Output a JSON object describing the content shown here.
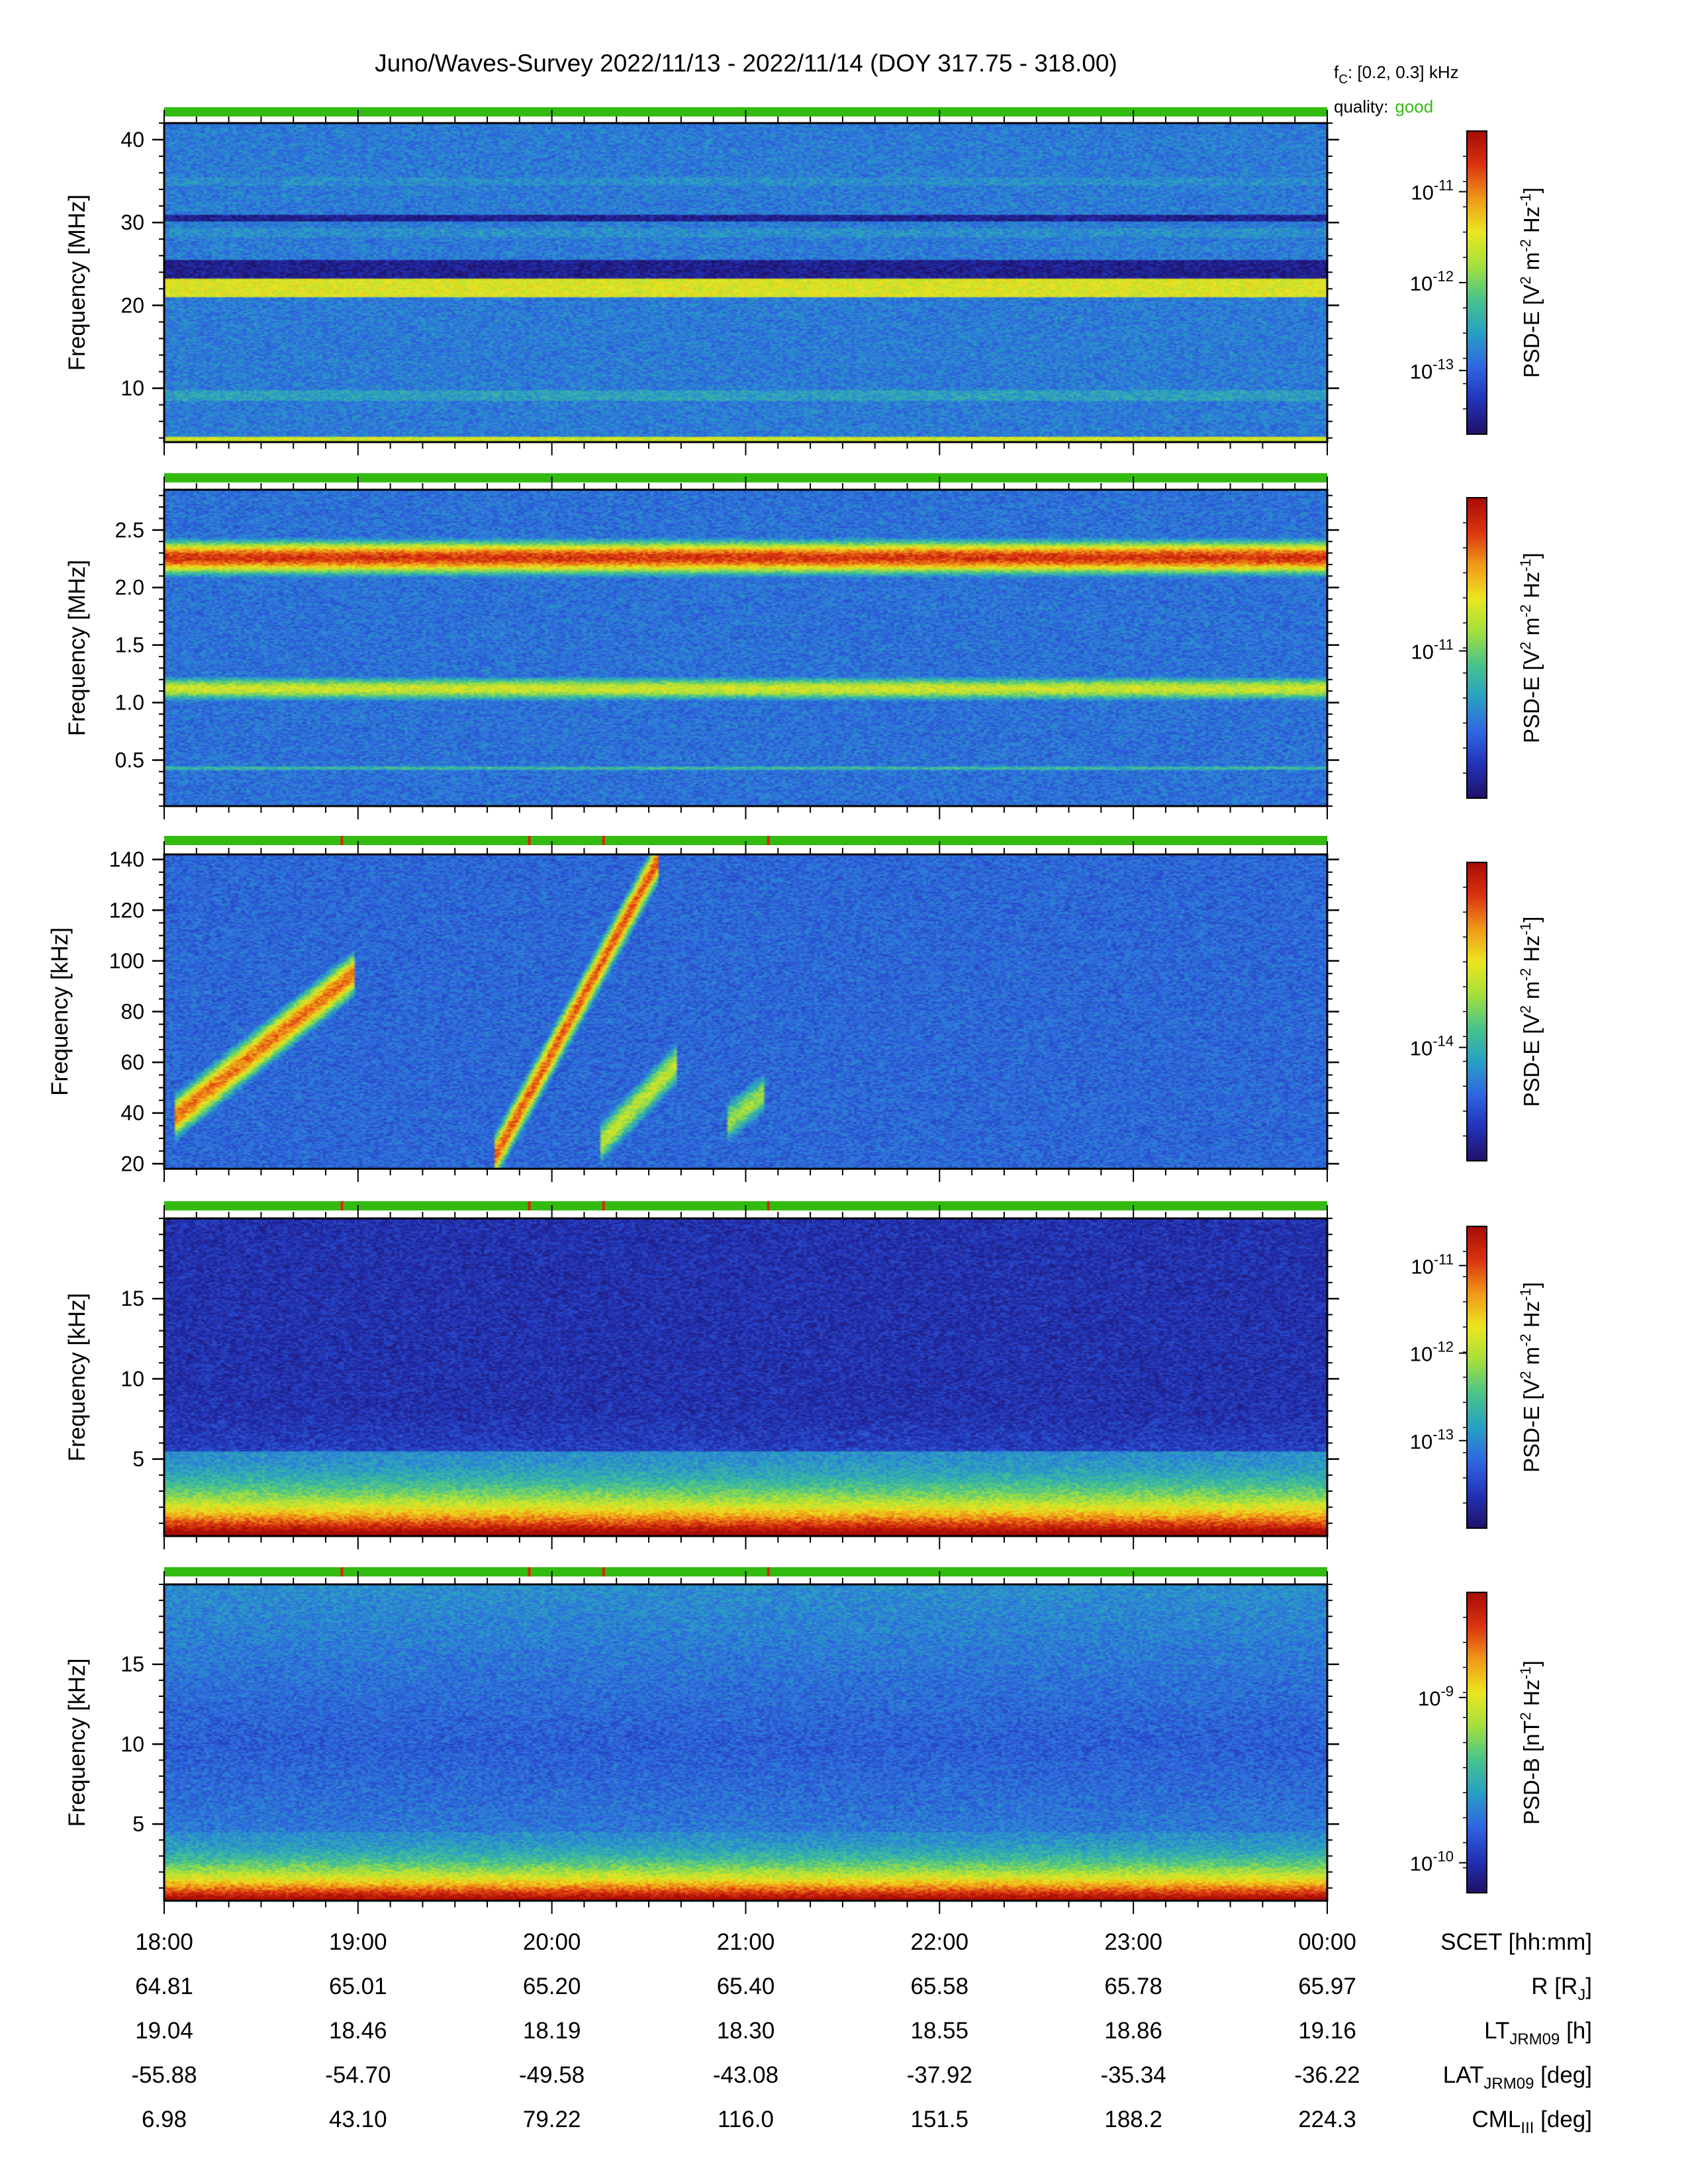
{
  "title": "Juno/Waves-Survey  2022/11/13 - 2022/11/14 (DOY 317.75 - 318.00)",
  "fc": {
    "sym": "f",
    "sub": "C",
    "text": ": [0.2, 0.3] kHz"
  },
  "quality": {
    "label": "quality:",
    "value": "good",
    "color": "#33bb11"
  },
  "chart_data": {
    "type": "heatmap",
    "x_axis": {
      "label": "SCET [hh:mm]",
      "ticks": [
        "18:00",
        "19:00",
        "20:00",
        "21:00",
        "22:00",
        "23:00",
        "00:00"
      ],
      "range": [
        "2022-11-13T18:00",
        "2022-11-14T00:00"
      ]
    },
    "ephemeris": [
      {
        "name": "R",
        "unit": " [R",
        "sub": "J",
        "tail": "]",
        "values": [
          "64.81",
          "65.01",
          "65.20",
          "65.40",
          "65.58",
          "65.78",
          "65.97"
        ]
      },
      {
        "name": "LT",
        "unit": "",
        "sub": "JRM09",
        "tail": " [h]",
        "values": [
          "19.04",
          "18.46",
          "18.19",
          "18.30",
          "18.55",
          "18.86",
          "19.16"
        ]
      },
      {
        "name": "LAT",
        "unit": "",
        "sub": "JRM09",
        "tail": " [deg]",
        "values": [
          "-55.88",
          "-54.70",
          "-49.58",
          "-43.08",
          "-37.92",
          "-35.34",
          "-36.22"
        ]
      },
      {
        "name": "CML",
        "unit": "",
        "sub": "III",
        "tail": " [deg]",
        "values": [
          "6.98",
          "43.10",
          "79.22",
          "116.0",
          "151.5",
          "188.2",
          "224.3"
        ]
      }
    ],
    "quality_flag_colors": {
      "good": "#33bb11",
      "flag": "#dd2200"
    },
    "flag_times": [
      "18:55",
      "19:53",
      "20:16",
      "21:07"
    ],
    "colormap": [
      "#20126a",
      "#2233b8",
      "#2f68e0",
      "#29a0c4",
      "#48c48c",
      "#a4e03c",
      "#ece620",
      "#f09a18",
      "#dc3410",
      "#a80c04"
    ],
    "panels": [
      {
        "ylabel": "Frequency [MHz]",
        "yrange": [
          3.5,
          42
        ],
        "yticks": [
          10,
          20,
          30,
          40
        ],
        "ytick_labels": [
          "10",
          "20",
          "30",
          "40"
        ],
        "minor_step": 2,
        "quantity": "PSD-E",
        "unit_text": [
          "[V",
          "2",
          " m",
          "-2",
          " Hz",
          "-1",
          "]"
        ],
        "cbar_ticks": [
          {
            "exp": "-11",
            "frac": 0.2
          },
          {
            "exp": "-12",
            "frac": 0.5
          },
          {
            "exp": "-13",
            "frac": 0.79
          }
        ],
        "flags": false,
        "features": [
          {
            "kind": "band",
            "from": 3.5,
            "to": 4.2,
            "level": 0.62
          },
          {
            "kind": "band",
            "from": 8.5,
            "to": 9.8,
            "level": 0.34
          },
          {
            "kind": "band",
            "from": 21,
            "to": 23.2,
            "level": 0.64
          },
          {
            "kind": "band",
            "from": 23.2,
            "to": 25.5,
            "level": 0.05
          },
          {
            "kind": "band",
            "from": 30.2,
            "to": 31,
            "level": 0.05
          },
          {
            "kind": "band",
            "from": 28.2,
            "to": 29.4,
            "level": 0.3
          },
          {
            "kind": "band",
            "from": 34.5,
            "to": 35.5,
            "level": 0.3
          }
        ]
      },
      {
        "ylabel": "Frequency [MHz]",
        "yrange": [
          0.1,
          2.85
        ],
        "yticks": [
          0.5,
          1.0,
          1.5,
          2.0,
          2.5
        ],
        "ytick_labels": [
          "0.5",
          "1.0",
          "1.5",
          "2.0",
          "2.5"
        ],
        "minor_step": 0.1,
        "quantity": "PSD-E",
        "unit_text": [
          "[V",
          "2",
          " m",
          "-2",
          " Hz",
          "-1",
          "]"
        ],
        "cbar_ticks": [
          {
            "exp": "-11",
            "frac": 0.51
          }
        ],
        "flags": false,
        "features": [
          {
            "kind": "gband",
            "center": 2.26,
            "width": 0.22,
            "level": 0.9
          },
          {
            "kind": "gband",
            "center": 1.12,
            "width": 0.16,
            "level": 0.62
          },
          {
            "kind": "gband",
            "center": 0.43,
            "width": 0.04,
            "level": 0.42
          }
        ]
      },
      {
        "ylabel": "Frequency [kHz]",
        "yrange": [
          18,
          142
        ],
        "yticks": [
          20,
          40,
          60,
          80,
          100,
          120,
          140
        ],
        "ytick_labels": [
          "20",
          "40",
          "60",
          "80",
          "100",
          "120",
          "140"
        ],
        "minor_step": 5,
        "quantity": "PSD-E",
        "unit_text": [
          "[V",
          "2",
          " m",
          "-2",
          " Hz",
          "-1",
          "]"
        ],
        "cbar_ticks": [
          {
            "exp": "-14",
            "frac": 0.62
          }
        ],
        "flags": true,
        "features": [
          {
            "kind": "arc",
            "t0": 18.05,
            "t1": 18.98,
            "f0": 38,
            "f1": 95,
            "level": 0.82
          },
          {
            "kind": "arc",
            "t0": 19.7,
            "t1": 20.55,
            "f0": 22,
            "f1": 140,
            "level": 0.85
          },
          {
            "kind": "arc",
            "t0": 20.25,
            "t1": 20.65,
            "f0": 28,
            "f1": 60,
            "level": 0.6
          },
          {
            "kind": "arc",
            "t0": 20.9,
            "t1": 21.1,
            "f0": 36,
            "f1": 48,
            "level": 0.55
          }
        ]
      },
      {
        "ylabel": "Frequency [kHz]",
        "yrange": [
          0.2,
          20
        ],
        "yticks": [
          5,
          10,
          15
        ],
        "ytick_labels": [
          "5",
          "10",
          "15"
        ],
        "minor_step": 1,
        "quantity": "PSD-E",
        "unit_text": [
          "[V",
          "2",
          " m",
          "-2",
          " Hz",
          "-1",
          "]"
        ],
        "cbar_ticks": [
          {
            "exp": "-11",
            "frac": 0.13
          },
          {
            "exp": "-12",
            "frac": 0.42
          },
          {
            "exp": "-13",
            "frac": 0.71
          }
        ],
        "flags": true,
        "features": [
          {
            "kind": "lowhot",
            "top": 5.5,
            "level": 0.98
          }
        ]
      },
      {
        "ylabel": "Frequency [kHz]",
        "yrange": [
          0.2,
          20
        ],
        "yticks": [
          5,
          10,
          15
        ],
        "ytick_labels": [
          "5",
          "10",
          "15"
        ],
        "minor_step": 1,
        "quantity": "PSD-B",
        "unit_text": [
          "[nT",
          "2",
          " Hz",
          "-1",
          "]"
        ],
        "cbar_ticks": [
          {
            "exp": "-9",
            "frac": 0.35
          },
          {
            "exp": "-10",
            "frac": 0.9
          }
        ],
        "flags": true,
        "features": [
          {
            "kind": "lowhot",
            "top": 4.5,
            "level": 0.97
          }
        ]
      }
    ]
  }
}
